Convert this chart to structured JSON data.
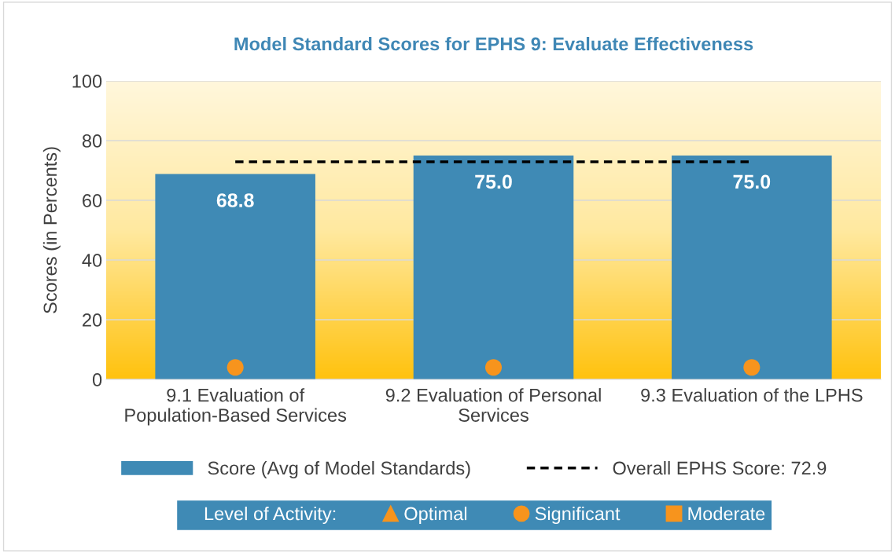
{
  "chart_data": {
    "type": "bar",
    "title": "Model Standard Scores for EPHS 9: Evaluate Effectiveness",
    "ylabel": "Scores (in Percents)",
    "categories": [
      "9.1 Evaluation of\nPopulation-Based Services",
      "9.2 Evaluation of Personal\nServices",
      "9.3 Evaluation of the LPHS"
    ],
    "series": [
      {
        "name": "Score (Avg of Model Standards)",
        "color": "#3f8ab5",
        "values": [
          68.8,
          75.0,
          75.0
        ],
        "value_labels": [
          "68.8",
          "75.0",
          "75.0"
        ]
      },
      {
        "name": "Optimal",
        "type": "scatter",
        "marker": "triangle",
        "color": "#f7941d",
        "values": [
          null,
          null,
          null
        ]
      },
      {
        "name": "Significant",
        "type": "scatter",
        "marker": "circle",
        "color": "#f7941d",
        "values": [
          4,
          4,
          4
        ]
      },
      {
        "name": "Moderate",
        "type": "scatter",
        "marker": "square",
        "color": "#f7941d",
        "values": [
          null,
          null,
          null
        ]
      }
    ],
    "legend_title": "Level of Activity:",
    "ref_lines": [
      {
        "axis": "y",
        "value": 72.9,
        "label": "Overall EPHS Score: 72.9",
        "color": "#000000",
        "line_style": "dashed"
      }
    ],
    "ylim": [
      0,
      100
    ],
    "yticks": [
      0,
      20,
      40,
      60,
      80,
      100
    ],
    "grid": "y",
    "legend": "bottom"
  }
}
